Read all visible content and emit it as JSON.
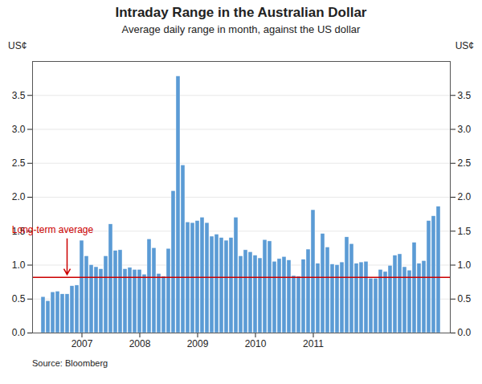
{
  "chart_data": {
    "type": "bar",
    "title": "Intraday Range in the Australian Dollar",
    "subtitle": "Average daily range in month, against the US dollar",
    "ylabel_left": "US¢",
    "ylabel_right": "US¢",
    "source": "Source: Bloomberg",
    "categories": [
      null,
      null,
      null,
      null,
      null,
      null,
      null,
      null,
      "2007",
      null,
      null,
      null,
      null,
      null,
      null,
      null,
      null,
      null,
      null,
      null,
      "2008",
      null,
      null,
      null,
      null,
      null,
      null,
      null,
      null,
      null,
      null,
      null,
      "2009",
      null,
      null,
      null,
      null,
      null,
      null,
      null,
      null,
      null,
      null,
      null,
      "2010",
      null,
      null,
      null,
      null,
      null,
      null,
      null,
      null,
      null,
      null,
      null,
      "2011",
      null,
      null,
      null,
      null,
      null,
      null,
      null,
      null,
      null,
      null,
      null,
      null,
      null,
      null,
      null,
      null,
      null,
      null,
      null,
      null,
      null,
      null,
      null,
      null,
      null,
      null
    ],
    "values": [
      0.53,
      0.47,
      0.6,
      0.61,
      0.57,
      0.57,
      0.69,
      0.7,
      1.36,
      1.13,
      1.0,
      0.97,
      0.94,
      1.13,
      1.6,
      1.21,
      1.22,
      0.94,
      0.96,
      0.93,
      0.93,
      0.86,
      1.38,
      1.25,
      0.87,
      0.83,
      1.24,
      2.09,
      3.78,
      2.47,
      1.63,
      1.62,
      1.65,
      1.7,
      1.62,
      1.42,
      1.45,
      1.4,
      1.36,
      1.4,
      1.7,
      1.13,
      1.22,
      1.19,
      1.14,
      1.1,
      1.37,
      1.35,
      1.05,
      1.09,
      1.12,
      1.07,
      0.84,
      0.83,
      1.08,
      1.23,
      1.81,
      1.02,
      1.46,
      1.26,
      1.01,
      1.0,
      1.04,
      1.41,
      1.31,
      1.02,
      1.04,
      1.05,
      0.8,
      0.8,
      0.93,
      0.9,
      0.99,
      1.14,
      1.16,
      0.97,
      0.92,
      1.33,
      1.02,
      1.06,
      1.65,
      1.72,
      1.86
    ],
    "color": "#5b9bd5",
    "ylim": [
      0.0,
      4.0
    ],
    "yticks": [
      {
        "value": 0.0,
        "label": "0.0"
      },
      0.5,
      {
        "value": 1.0,
        "label": "1.0"
      },
      1.5,
      {
        "value": 2.0,
        "label": "2.0"
      },
      2.5,
      {
        "value": 3.0,
        "label": "3.0"
      },
      3.5
    ],
    "grid": true,
    "reference_line": {
      "value": 0.82,
      "label": "Long-term average",
      "color": "#cc0000"
    }
  }
}
